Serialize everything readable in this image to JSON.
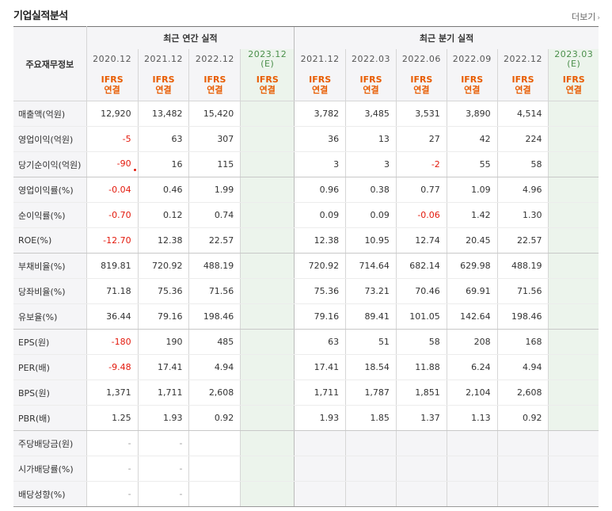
{
  "header": {
    "title": "기업실적분석",
    "more_label": "더보기"
  },
  "table": {
    "corner_label": "주요재무정보",
    "group_annual": "최근 연간 실적",
    "group_quarter": "최근 분기 실적",
    "annual_periods": [
      "2020.12",
      "2021.12",
      "2022.12",
      "2023.12"
    ],
    "annual_est_suffix": "(E)",
    "quarter_periods": [
      "2021.12",
      "2022.03",
      "2022.06",
      "2022.09",
      "2022.12",
      "2023.03"
    ],
    "quarter_est_suffix": "(E)",
    "basis_top": "IFRS",
    "basis_bottom": "연결",
    "rows": [
      {
        "label": "매출액(억원)",
        "annual": [
          "12,920",
          "13,482",
          "15,420",
          ""
        ],
        "quarter": [
          "3,782",
          "3,485",
          "3,531",
          "3,890",
          "4,514",
          ""
        ]
      },
      {
        "label": "영업이익(억원)",
        "annual": [
          "-5",
          "63",
          "307",
          ""
        ],
        "quarter": [
          "36",
          "13",
          "27",
          "42",
          "224",
          ""
        ]
      },
      {
        "label": "당기순이익(억원)",
        "annual": [
          "-90",
          "16",
          "115",
          ""
        ],
        "quarter": [
          "3",
          "3",
          "-2",
          "55",
          "58",
          ""
        ]
      },
      {
        "label": "영업이익률(%)",
        "annual": [
          "-0.04",
          "0.46",
          "1.99",
          ""
        ],
        "quarter": [
          "0.96",
          "0.38",
          "0.77",
          "1.09",
          "4.96",
          ""
        ]
      },
      {
        "label": "순이익률(%)",
        "annual": [
          "-0.70",
          "0.12",
          "0.74",
          ""
        ],
        "quarter": [
          "0.09",
          "0.09",
          "-0.06",
          "1.42",
          "1.30",
          ""
        ]
      },
      {
        "label": "ROE(%)",
        "annual": [
          "-12.70",
          "12.38",
          "22.57",
          ""
        ],
        "quarter": [
          "12.38",
          "10.95",
          "12.74",
          "20.45",
          "22.57",
          ""
        ]
      },
      {
        "label": "부채비율(%)",
        "annual": [
          "819.81",
          "720.92",
          "488.19",
          ""
        ],
        "quarter": [
          "720.92",
          "714.64",
          "682.14",
          "629.98",
          "488.19",
          ""
        ]
      },
      {
        "label": "당좌비율(%)",
        "annual": [
          "71.18",
          "75.36",
          "71.56",
          ""
        ],
        "quarter": [
          "75.36",
          "73.21",
          "70.46",
          "69.91",
          "71.56",
          ""
        ]
      },
      {
        "label": "유보율(%)",
        "annual": [
          "36.44",
          "79.16",
          "198.46",
          ""
        ],
        "quarter": [
          "79.16",
          "89.41",
          "101.05",
          "142.64",
          "198.46",
          ""
        ]
      },
      {
        "label": "EPS(원)",
        "annual": [
          "-180",
          "190",
          "485",
          ""
        ],
        "quarter": [
          "63",
          "51",
          "58",
          "208",
          "168",
          ""
        ]
      },
      {
        "label": "PER(배)",
        "annual": [
          "-9.48",
          "17.41",
          "4.94",
          ""
        ],
        "quarter": [
          "17.41",
          "18.54",
          "11.88",
          "6.24",
          "4.94",
          ""
        ]
      },
      {
        "label": "BPS(원)",
        "annual": [
          "1,371",
          "1,711",
          "2,608",
          ""
        ],
        "quarter": [
          "1,711",
          "1,787",
          "1,851",
          "2,104",
          "2,608",
          ""
        ]
      },
      {
        "label": "PBR(배)",
        "annual": [
          "1.25",
          "1.93",
          "0.92",
          ""
        ],
        "quarter": [
          "1.93",
          "1.85",
          "1.37",
          "1.13",
          "0.92",
          ""
        ]
      },
      {
        "label": "주당배당금(원)",
        "annual": [
          "-",
          "-",
          "",
          ""
        ],
        "quarter": [
          "",
          "",
          "",
          "",
          "",
          ""
        ]
      },
      {
        "label": "시가배당률(%)",
        "annual": [
          "-",
          "-",
          "",
          ""
        ],
        "quarter": [
          "",
          "",
          "",
          "",
          "",
          ""
        ]
      },
      {
        "label": "배당성향(%)",
        "annual": [
          "-",
          "-",
          "",
          ""
        ],
        "quarter": [
          "",
          "",
          "",
          "",
          "",
          ""
        ]
      }
    ]
  }
}
